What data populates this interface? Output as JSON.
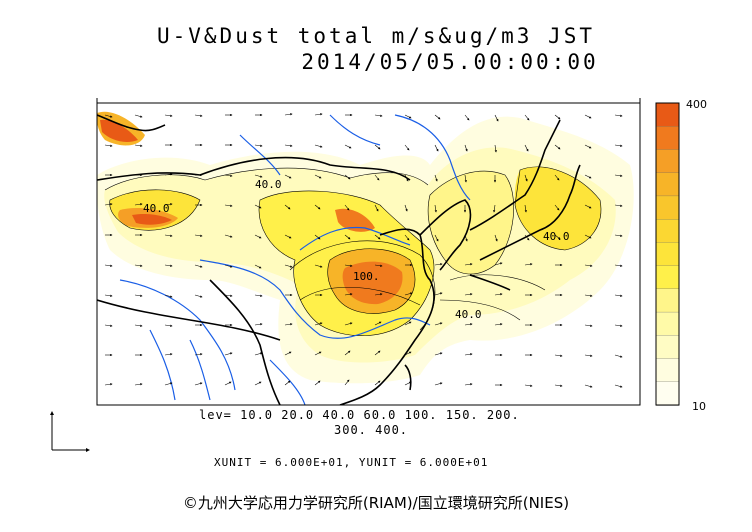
{
  "title": "U-V&Dust total m/s&ug/m3 JST",
  "datetime": "2014/05/05.00:00:00",
  "levels_line1": "lev= 10.0 20.0 40.0 60.0 100. 150. 200.",
  "levels_line2": "300. 400.",
  "units_line": "XUNIT = 6.000E+01, YUNIT = 6.000E+01",
  "credit": "©九州大学応用力学研究所(RIAM)/国立環境研究所(NIES)",
  "colorbar": {
    "max_label": "400",
    "min_label": "10",
    "colors": [
      "#e85a16",
      "#f07a1e",
      "#f59f26",
      "#f7b428",
      "#f9c62c",
      "#fbd732",
      "#fde43a",
      "#fff04a",
      "#fff58a",
      "#fffaa8",
      "#fffcc4",
      "#fffde0",
      "#fffef0"
    ]
  },
  "contour_labels": [
    "40.0",
    "40.0",
    "40.0",
    "40.0",
    "100."
  ],
  "colors": {
    "frame": "#000000",
    "rivers": "#1a5ee6",
    "coast": "#000000"
  }
}
